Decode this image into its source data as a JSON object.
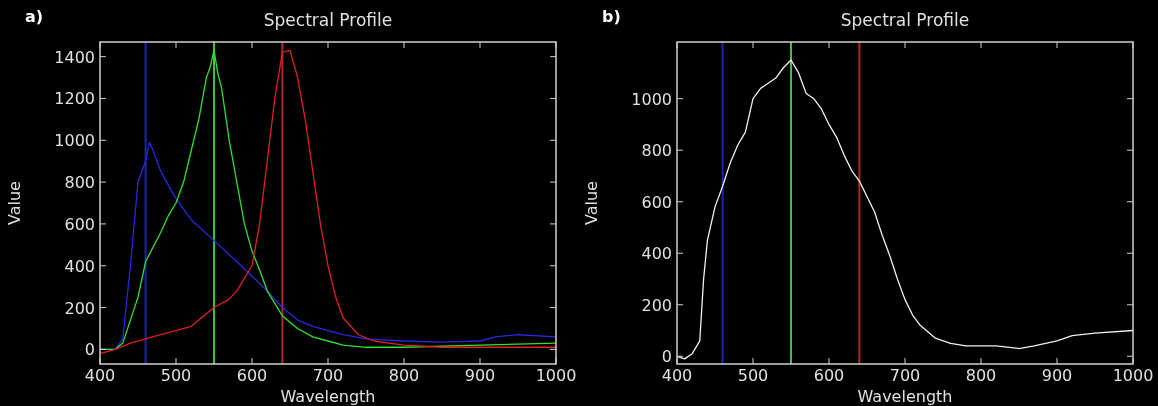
{
  "chart_data": [
    {
      "type": "line",
      "title": "Spectral Profile",
      "xlabel": "Wavelength",
      "ylabel": "Value",
      "annotations": [
        "a)"
      ],
      "xlim": [
        400,
        1000
      ],
      "xticks": [
        400,
        500,
        600,
        700,
        800,
        900,
        1000
      ],
      "ylim": [
        -70,
        1470
      ],
      "yticks": [
        0,
        200,
        400,
        600,
        800,
        1000,
        1200,
        1400
      ],
      "grid": false,
      "ref_lines": [
        {
          "axis": "x",
          "value": 460,
          "color": "#2020b0"
        },
        {
          "axis": "x",
          "value": 550,
          "color": "#40c040"
        },
        {
          "axis": "x",
          "value": 640,
          "color": "#b02828"
        }
      ],
      "series": [
        {
          "color": "#2828e0",
          "x": [
            400,
            420,
            430,
            440,
            450,
            460,
            465,
            470,
            480,
            500,
            520,
            550,
            580,
            600,
            620,
            640,
            660,
            680,
            700,
            720,
            750,
            800,
            850,
            900,
            920,
            950,
            1000
          ],
          "values": [
            0,
            0,
            50,
            400,
            800,
            900,
            990,
            950,
            850,
            720,
            620,
            520,
            420,
            350,
            280,
            200,
            140,
            110,
            90,
            70,
            50,
            40,
            35,
            40,
            60,
            70,
            60
          ]
        },
        {
          "color": "#30e030",
          "x": [
            400,
            420,
            430,
            450,
            460,
            480,
            490,
            500,
            510,
            520,
            530,
            540,
            545,
            550,
            555,
            560,
            570,
            580,
            590,
            600,
            610,
            620,
            640,
            660,
            680,
            700,
            720,
            750,
            800,
            900,
            1000
          ],
          "values": [
            0,
            0,
            30,
            250,
            420,
            560,
            640,
            700,
            800,
            950,
            1100,
            1300,
            1350,
            1430,
            1320,
            1250,
            1000,
            800,
            600,
            470,
            380,
            280,
            160,
            100,
            60,
            40,
            20,
            10,
            10,
            20,
            30
          ]
        },
        {
          "color": "#e02020",
          "x": [
            400,
            420,
            440,
            460,
            480,
            500,
            520,
            540,
            550,
            570,
            580,
            600,
            610,
            620,
            630,
            640,
            650,
            660,
            670,
            680,
            690,
            700,
            710,
            720,
            740,
            760,
            800,
            850,
            900,
            1000
          ],
          "values": [
            -20,
            0,
            30,
            50,
            70,
            90,
            110,
            170,
            200,
            240,
            280,
            400,
            600,
            900,
            1200,
            1420,
            1430,
            1300,
            1100,
            850,
            600,
            400,
            250,
            150,
            70,
            40,
            20,
            10,
            10,
            10
          ]
        }
      ]
    },
    {
      "type": "line",
      "title": "Spectral Profile",
      "xlabel": "Wavelength",
      "ylabel": "Value",
      "annotations": [
        "b)"
      ],
      "xlim": [
        400,
        1000
      ],
      "xticks": [
        400,
        500,
        600,
        700,
        800,
        900,
        1000
      ],
      "ylim": [
        -30,
        1220
      ],
      "yticks": [
        0,
        200,
        400,
        600,
        800,
        1000
      ],
      "grid": false,
      "ref_lines": [
        {
          "axis": "x",
          "value": 460,
          "color": "#2020b0"
        },
        {
          "axis": "x",
          "value": 550,
          "color": "#40c040"
        },
        {
          "axis": "x",
          "value": 640,
          "color": "#b02828"
        }
      ],
      "series": [
        {
          "color": "#f0f0f0",
          "x": [
            400,
            410,
            420,
            430,
            435,
            440,
            450,
            460,
            470,
            480,
            490,
            500,
            510,
            520,
            530,
            540,
            550,
            560,
            570,
            580,
            590,
            600,
            610,
            620,
            630,
            640,
            650,
            660,
            670,
            680,
            690,
            700,
            710,
            720,
            740,
            760,
            780,
            800,
            820,
            850,
            870,
            900,
            920,
            950,
            1000
          ],
          "values": [
            0,
            -10,
            10,
            60,
            300,
            450,
            580,
            660,
            750,
            820,
            870,
            1000,
            1040,
            1060,
            1080,
            1120,
            1150,
            1100,
            1020,
            1000,
            960,
            900,
            850,
            780,
            720,
            680,
            620,
            560,
            470,
            390,
            300,
            220,
            160,
            120,
            70,
            50,
            40,
            40,
            40,
            30,
            40,
            60,
            80,
            90,
            100
          ]
        }
      ]
    }
  ]
}
